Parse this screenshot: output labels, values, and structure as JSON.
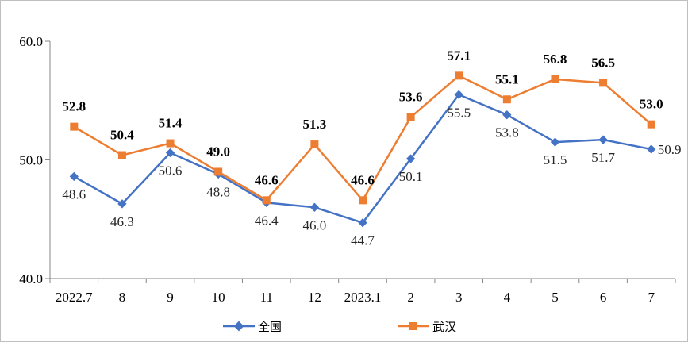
{
  "colors": {
    "national": "#4472C4",
    "wuhan": "#ED7D31",
    "axis": "#868686"
  },
  "chart_data": {
    "type": "line",
    "categories": [
      "2022.7",
      "8",
      "9",
      "10",
      "11",
      "12",
      "2023.1",
      "2",
      "3",
      "4",
      "5",
      "6",
      "7"
    ],
    "ylim": [
      40.0,
      60.0
    ],
    "yticks": [
      40.0,
      50.0,
      60.0
    ],
    "ytick_labels": [
      "40.0",
      "50.0",
      "60.0"
    ],
    "grid": false,
    "legend_position": "bottom",
    "series": [
      {
        "name": "全国",
        "marker": "diamond",
        "values": [
          48.6,
          46.3,
          50.6,
          48.8,
          46.4,
          46.0,
          44.7,
          50.1,
          55.5,
          53.8,
          51.5,
          51.7,
          50.9
        ],
        "labels": [
          "48.6",
          "46.3",
          "50.6",
          "48.8",
          "46.4",
          "46.0",
          "44.7",
          "50.1",
          "55.5",
          "53.8",
          "51.5",
          "51.7",
          "50.9"
        ]
      },
      {
        "name": "武汉",
        "marker": "square",
        "values": [
          52.8,
          50.4,
          51.4,
          49.0,
          46.6,
          51.3,
          46.6,
          53.6,
          57.1,
          55.1,
          56.8,
          56.5,
          53.0
        ],
        "labels": [
          "52.8",
          "50.4",
          "51.4",
          "49.0",
          "46.6",
          "51.3",
          "46.6",
          "53.6",
          "57.1",
          "55.1",
          "56.8",
          "56.5",
          "53.0"
        ]
      }
    ]
  }
}
